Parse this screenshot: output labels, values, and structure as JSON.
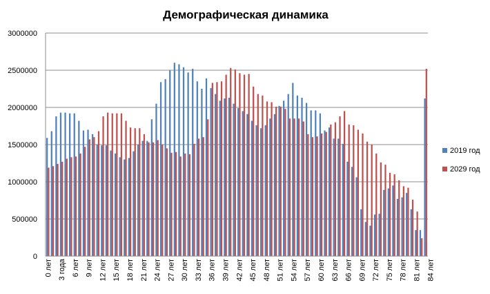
{
  "chart_data": {
    "type": "bar",
    "title": "Демографическая  динамика",
    "xlabel": "",
    "ylabel": "",
    "ylim": [
      0,
      3000000
    ],
    "y_ticks": [
      "0",
      "500000",
      "1000000",
      "1500000",
      "2000000",
      "2500000",
      "3000000"
    ],
    "grid": true,
    "legend_position": "right",
    "x_tick_labels": [
      "0 лет",
      "3 года",
      "6 лет",
      "9 лет",
      "12 лет",
      "15 лет",
      "18 лет",
      "21 лет",
      "24 лет",
      "27 лет",
      "30 лет",
      "33 лет",
      "36 лет",
      "39 лет",
      "42 лет",
      "45 лет",
      "48 лет",
      "51 лет",
      "54 лет",
      "57 лет",
      "60 лет",
      "63 лет",
      "66 лет",
      "69 лет",
      "72 лет",
      "75 лет",
      "78 лет",
      "81 лет",
      "84 лет"
    ],
    "series": [
      {
        "name": "2019 год",
        "color": "#4f81bd",
        "values": [
          1590000,
          1680000,
          1880000,
          1930000,
          1930000,
          1920000,
          1920000,
          1820000,
          1690000,
          1700000,
          1640000,
          1500000,
          1490000,
          1490000,
          1420000,
          1380000,
          1330000,
          1300000,
          1320000,
          1410000,
          1500000,
          1550000,
          1550000,
          1840000,
          2050000,
          2340000,
          2380000,
          2500000,
          2600000,
          2580000,
          2540000,
          2470000,
          2520000,
          2350000,
          2250000,
          2390000,
          2260000,
          2180000,
          2090000,
          2120000,
          2130000,
          2050000,
          1990000,
          1950000,
          1910000,
          1820000,
          1760000,
          1720000,
          1760000,
          1850000,
          1910000,
          2020000,
          2090000,
          2180000,
          2330000,
          2160000,
          2130000,
          2060000,
          1960000,
          1960000,
          1920000,
          1690000,
          1730000,
          1580000,
          1580000,
          1510000,
          1270000,
          1200000,
          1060000,
          630000,
          460000,
          410000,
          560000,
          570000,
          890000,
          910000,
          950000,
          770000,
          790000,
          850000,
          630000,
          350000,
          350000,
          2120000
        ]
      },
      {
        "name": "2029 год",
        "color": "#c0504d",
        "values": [
          1190000,
          1210000,
          1240000,
          1270000,
          1310000,
          1330000,
          1340000,
          1380000,
          1470000,
          1570000,
          1600000,
          1680000,
          1880000,
          1930000,
          1920000,
          1920000,
          1920000,
          1820000,
          1730000,
          1720000,
          1720000,
          1640000,
          1530000,
          1530000,
          1560000,
          1500000,
          1450000,
          1390000,
          1400000,
          1340000,
          1380000,
          1370000,
          1510000,
          1580000,
          1600000,
          1840000,
          2330000,
          2340000,
          2350000,
          2440000,
          2530000,
          2510000,
          2460000,
          2440000,
          2450000,
          2280000,
          2180000,
          2160000,
          2080000,
          2070000,
          2010000,
          2010000,
          1980000,
          1850000,
          1850000,
          1850000,
          1810000,
          1640000,
          1600000,
          1610000,
          1650000,
          1670000,
          1770000,
          1800000,
          1880000,
          1950000,
          1770000,
          1760000,
          1700000,
          1650000,
          1540000,
          1500000,
          1380000,
          1260000,
          1230000,
          1120000,
          1100000,
          1020000,
          940000,
          920000,
          760000,
          600000,
          240000,
          2520000
        ]
      }
    ]
  }
}
